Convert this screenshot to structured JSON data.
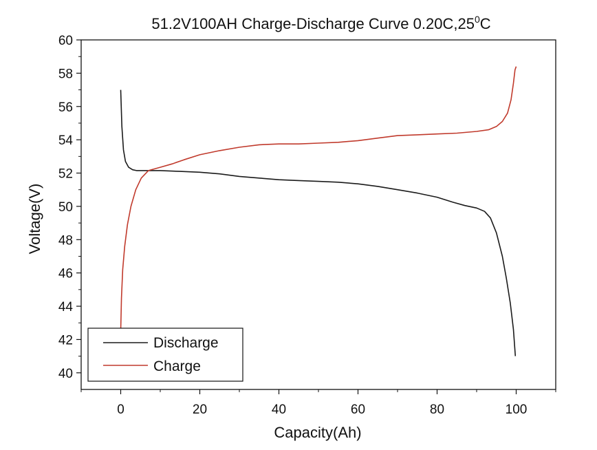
{
  "chart_data": {
    "type": "line",
    "title": "51.2V100AH Charge-Discharge Curve  0.20C,25",
    "title_superscript": "0",
    "title_suffix": "C",
    "xlabel": "Capacity(Ah)",
    "ylabel": "Voltage(V)",
    "xlim": [
      -10,
      110
    ],
    "ylim": [
      39,
      60
    ],
    "xticks": [
      0,
      20,
      40,
      60,
      80,
      100
    ],
    "yticks": [
      40,
      42,
      44,
      46,
      48,
      50,
      52,
      54,
      56,
      58,
      60
    ],
    "legend_position": "bottom-left",
    "grid": false,
    "series": [
      {
        "name": "Discharge",
        "color": "#1a1a1a",
        "points": [
          [
            0,
            57.0
          ],
          [
            0.3,
            54.8
          ],
          [
            0.7,
            53.4
          ],
          [
            1.2,
            52.7
          ],
          [
            2,
            52.35
          ],
          [
            3,
            52.2
          ],
          [
            4,
            52.15
          ],
          [
            6,
            52.15
          ],
          [
            10,
            52.15
          ],
          [
            15,
            52.1
          ],
          [
            20,
            52.05
          ],
          [
            25,
            51.95
          ],
          [
            30,
            51.8
          ],
          [
            35,
            51.7
          ],
          [
            40,
            51.6
          ],
          [
            45,
            51.55
          ],
          [
            50,
            51.5
          ],
          [
            55,
            51.45
          ],
          [
            60,
            51.35
          ],
          [
            65,
            51.2
          ],
          [
            70,
            51.0
          ],
          [
            75,
            50.8
          ],
          [
            80,
            50.55
          ],
          [
            84,
            50.25
          ],
          [
            87,
            50.05
          ],
          [
            90,
            49.9
          ],
          [
            92,
            49.7
          ],
          [
            93.5,
            49.3
          ],
          [
            95,
            48.4
          ],
          [
            96.5,
            47.0
          ],
          [
            97.5,
            45.7
          ],
          [
            98.5,
            44.2
          ],
          [
            99.3,
            42.6
          ],
          [
            99.8,
            41.0
          ]
        ]
      },
      {
        "name": "Charge",
        "color": "#c0392b",
        "points": [
          [
            0,
            42.5
          ],
          [
            0.2,
            44.5
          ],
          [
            0.5,
            46.2
          ],
          [
            1,
            47.6
          ],
          [
            1.7,
            48.9
          ],
          [
            2.6,
            50.0
          ],
          [
            3.8,
            51.0
          ],
          [
            5.2,
            51.7
          ],
          [
            7,
            52.15
          ],
          [
            10,
            52.35
          ],
          [
            13,
            52.55
          ],
          [
            16,
            52.8
          ],
          [
            20,
            53.1
          ],
          [
            25,
            53.35
          ],
          [
            30,
            53.55
          ],
          [
            35,
            53.7
          ],
          [
            40,
            53.75
          ],
          [
            45,
            53.75
          ],
          [
            50,
            53.8
          ],
          [
            55,
            53.85
          ],
          [
            60,
            53.95
          ],
          [
            65,
            54.1
          ],
          [
            70,
            54.25
          ],
          [
            75,
            54.3
          ],
          [
            80,
            54.35
          ],
          [
            85,
            54.4
          ],
          [
            90,
            54.5
          ],
          [
            93,
            54.6
          ],
          [
            95,
            54.8
          ],
          [
            96.5,
            55.1
          ],
          [
            97.8,
            55.6
          ],
          [
            98.7,
            56.4
          ],
          [
            99.3,
            57.4
          ],
          [
            99.7,
            58.2
          ],
          [
            100,
            58.4
          ]
        ]
      }
    ]
  }
}
